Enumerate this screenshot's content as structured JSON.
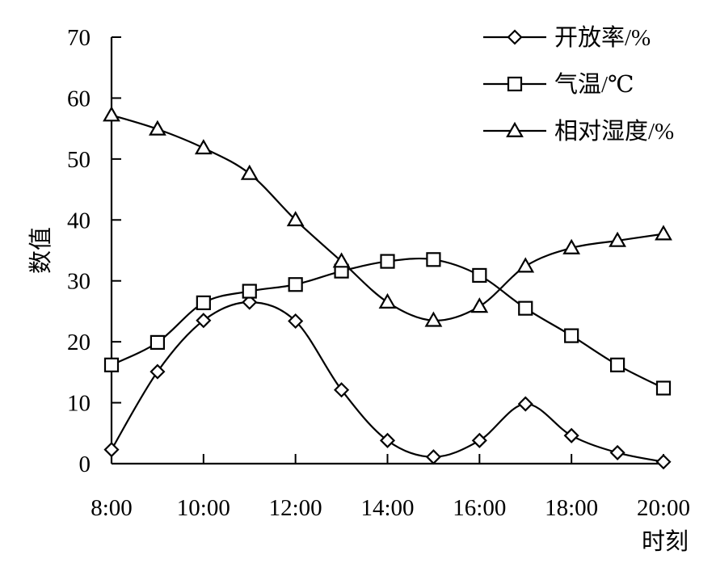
{
  "chart_data": {
    "type": "line",
    "title": "",
    "xlabel": "时刻",
    "ylabel": "数值",
    "categories": [
      "8:00",
      "9:00",
      "10:00",
      "11:00",
      "12:00",
      "13:00",
      "14:00",
      "15:00",
      "16:00",
      "17:00",
      "18:00",
      "19:00",
      "20:00"
    ],
    "x_tick_labels": [
      "8:00",
      "10:00",
      "12:00",
      "14:00",
      "16:00",
      "18:00",
      "20:00"
    ],
    "ylim": [
      0,
      70
    ],
    "y_ticks": [
      0,
      10,
      20,
      30,
      40,
      50,
      60,
      70
    ],
    "grid": false,
    "legend_position": "top-right",
    "series": [
      {
        "name": "开放率/%",
        "marker": "diamond",
        "values": [
          2.3,
          15.1,
          23.5,
          26.5,
          23.4,
          12.1,
          3.8,
          1.1,
          3.8,
          9.8,
          4.6,
          1.8,
          0.3
        ]
      },
      {
        "name": "气温/℃",
        "marker": "square",
        "values": [
          16.2,
          19.9,
          26.4,
          28.3,
          29.4,
          31.6,
          33.2,
          33.5,
          30.9,
          25.5,
          21.0,
          16.2,
          12.4
        ]
      },
      {
        "name": "相对湿度/%",
        "marker": "triangle",
        "values": [
          57.2,
          54.9,
          51.8,
          47.6,
          40.0,
          33.2,
          26.5,
          23.5,
          25.8,
          32.4,
          35.4,
          36.6,
          37.7
        ]
      }
    ],
    "colors": {
      "line": "#000000",
      "marker_fill": "#ffffff",
      "background": "#ffffff"
    }
  }
}
